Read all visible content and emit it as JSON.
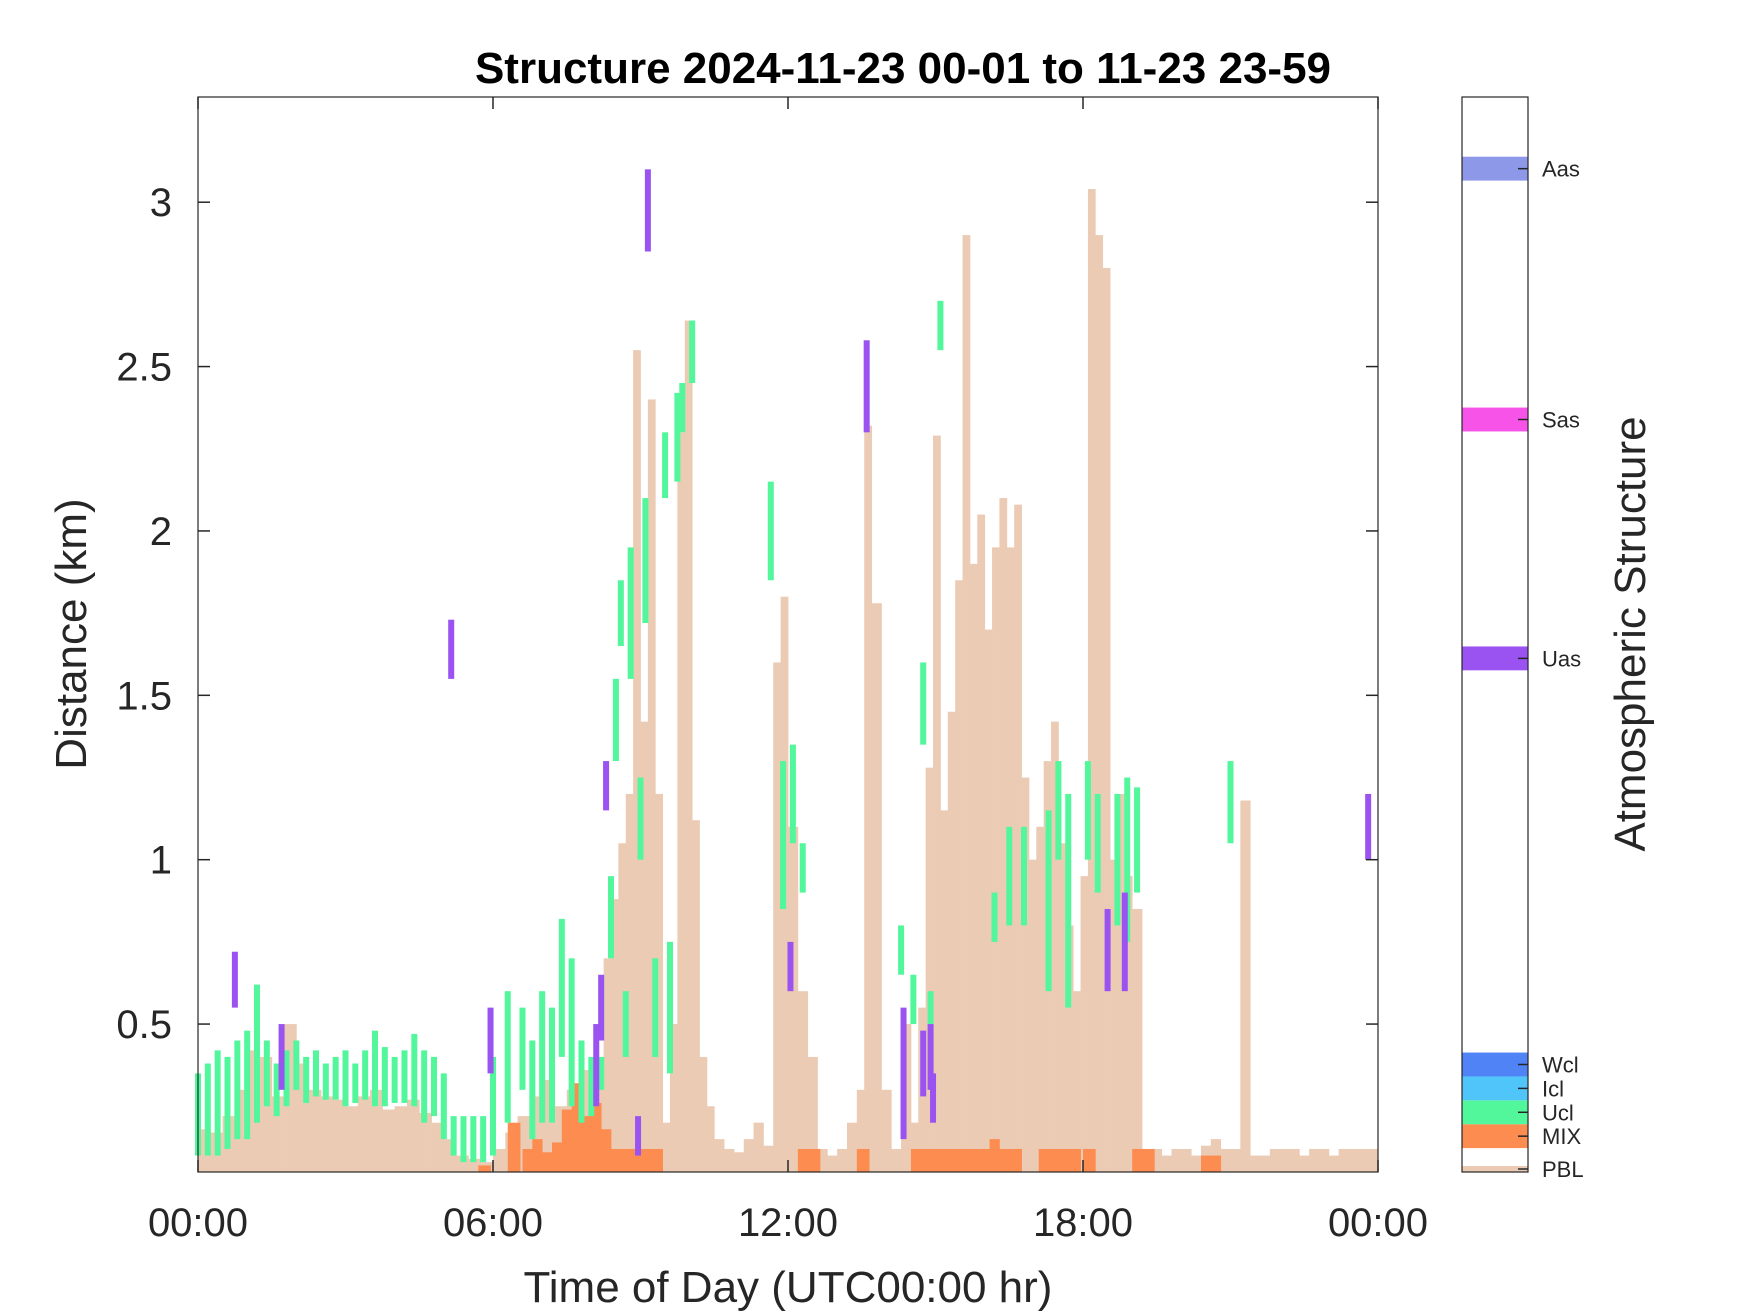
{
  "chart_data": {
    "type": "heatmap",
    "title": "Structure 2024-11-23 00-01 to 11-23 23-59",
    "xlabel": "Time of Day (UTC00:00 hr)",
    "ylabel": "Distance (km)",
    "xlim": [
      0,
      24
    ],
    "ylim": [
      0.05,
      3.32
    ],
    "x_ticks": [
      0,
      6,
      12,
      18,
      24
    ],
    "x_tick_labels": [
      "00:00",
      "06:00",
      "12:00",
      "18:00",
      "00:00"
    ],
    "y_ticks": [
      0.5,
      1,
      1.5,
      2,
      2.5,
      3
    ],
    "y_tick_labels": [
      "0.5",
      "1",
      "1.5",
      "2",
      "2.5",
      "3"
    ],
    "grid": false,
    "colorbar": {
      "label": "Atmospheric Structure",
      "categories": [
        {
          "name": "PBL",
          "color": "#eccbb4"
        },
        {
          "name": "MIX",
          "color": "#fc8c4f"
        },
        {
          "name": "Ucl",
          "color": "#52f79c"
        },
        {
          "name": "Icl",
          "color": "#50c5fa"
        },
        {
          "name": "Wcl",
          "color": "#4f83f6"
        },
        {
          "name": "Uas",
          "color": "#9a53f0"
        },
        {
          "name": "Sas",
          "color": "#f853e8"
        },
        {
          "name": "Aas",
          "color": "#8d98e9"
        }
      ]
    },
    "series": [
      {
        "name": "PBL",
        "type": "bars",
        "x": [
          0,
          0.25,
          0.5,
          0.75,
          1,
          1.25,
          1.5,
          1.75,
          2,
          2.25,
          2.5,
          2.75,
          3,
          3.25,
          3.5,
          3.75,
          4,
          4.25,
          4.5,
          4.75,
          5,
          5.25,
          5.5,
          5.75,
          6,
          6.25,
          6.5,
          6.75,
          7,
          7.25,
          7.5,
          7.75,
          8,
          8.25,
          8.4,
          8.55,
          8.7,
          8.85,
          9,
          9.15,
          9.3,
          9.45,
          9.6,
          9.75,
          9.9,
          10.05,
          10.2,
          10.35,
          10.5,
          10.7,
          10.9,
          11.1,
          11.3,
          11.5,
          11.7,
          11.85,
          12,
          12.2,
          12.4,
          12.6,
          12.8,
          13,
          13.2,
          13.4,
          13.55,
          13.7,
          13.9,
          14.1,
          14.3,
          14.5,
          14.65,
          14.8,
          14.95,
          15.1,
          15.25,
          15.4,
          15.55,
          15.7,
          15.85,
          16,
          16.15,
          16.3,
          16.45,
          16.6,
          16.75,
          16.9,
          17.05,
          17.2,
          17.35,
          17.5,
          17.65,
          17.8,
          17.95,
          18.1,
          18.25,
          18.4,
          18.55,
          18.7,
          18.85,
          19,
          19.2,
          19.4,
          19.6,
          19.8,
          20,
          20.2,
          20.4,
          20.6,
          20.8,
          21,
          21.2,
          21.4,
          21.6,
          21.8,
          22,
          22.2,
          22.4,
          22.6,
          22.8,
          23,
          23.2,
          23.4,
          23.6,
          23.8
        ],
        "top": [
          0.18,
          0.17,
          0.22,
          0.3,
          0.42,
          0.4,
          0.28,
          0.5,
          0.38,
          0.3,
          0.28,
          0.27,
          0.25,
          0.28,
          0.3,
          0.24,
          0.25,
          0.27,
          0.23,
          0.2,
          0.15,
          0.1,
          0.09,
          0.08,
          0.12,
          0.17,
          0.22,
          0.28,
          0.33,
          0.25,
          0.3,
          0.36,
          0.35,
          0.7,
          0.88,
          1.05,
          1.2,
          2.55,
          1.42,
          2.4,
          1.2,
          0.2,
          0.5,
          2.3,
          2.64,
          1.12,
          0.4,
          0.25,
          0.15,
          0.12,
          0.11,
          0.15,
          0.2,
          0.13,
          1.6,
          1.8,
          1.1,
          0.6,
          0.4,
          0.12,
          0.1,
          0.12,
          0.2,
          0.3,
          2.32,
          1.78,
          0.3,
          0.12,
          0.5,
          0.2,
          0.55,
          1.28,
          2.29,
          1.15,
          1.45,
          1.85,
          2.9,
          1.9,
          2.05,
          1.7,
          1.95,
          2.1,
          1.95,
          2.08,
          1.25,
          1.0,
          1.1,
          1.3,
          1.42,
          1.05,
          0.8,
          0.6,
          0.95,
          3.04,
          2.9,
          2.8,
          1.0,
          1.2,
          0.95,
          0.85,
          0.12,
          0.12,
          0.1,
          0.12,
          0.12,
          0.1,
          0.13,
          0.15,
          0.12,
          0.12,
          1.18,
          0.1,
          0.1,
          0.12,
          0.12,
          0.12,
          0.1,
          0.12,
          0.12,
          0.1,
          0.12,
          0.12,
          0.12,
          0.12
        ]
      },
      {
        "name": "MIX",
        "type": "bars",
        "x": [
          5.7,
          6.3,
          6.6,
          6.8,
          7.0,
          7.2,
          7.4,
          7.6,
          7.8,
          8.0,
          8.2,
          8.4,
          8.6,
          8.8,
          9.0,
          9.2,
          12.2,
          12.4,
          13.4,
          14.5,
          14.7,
          14.9,
          15.1,
          15.3,
          15.5,
          15.7,
          15.9,
          16.1,
          16.3,
          16.5,
          17.1,
          17.3,
          17.5,
          17.7,
          18.0,
          19.0,
          19.2,
          20.4,
          20.6
        ],
        "top": [
          0.07,
          0.2,
          0.12,
          0.15,
          0.11,
          0.14,
          0.24,
          0.32,
          0.22,
          0.26,
          0.18,
          0.12,
          0.12,
          0.12,
          0.12,
          0.12,
          0.12,
          0.12,
          0.12,
          0.12,
          0.12,
          0.12,
          0.12,
          0.12,
          0.12,
          0.12,
          0.12,
          0.15,
          0.12,
          0.12,
          0.12,
          0.12,
          0.12,
          0.12,
          0.12,
          0.12,
          0.12,
          0.1,
          0.1
        ]
      },
      {
        "name": "Ucl",
        "type": "segments",
        "segments": [
          [
            0.0,
            0.1,
            0.35
          ],
          [
            0.2,
            0.1,
            0.38
          ],
          [
            0.4,
            0.1,
            0.42
          ],
          [
            0.6,
            0.12,
            0.4
          ],
          [
            0.8,
            0.15,
            0.45
          ],
          [
            1.0,
            0.15,
            0.48
          ],
          [
            1.2,
            0.2,
            0.62
          ],
          [
            1.4,
            0.25,
            0.45
          ],
          [
            1.6,
            0.22,
            0.38
          ],
          [
            1.8,
            0.25,
            0.42
          ],
          [
            2.0,
            0.3,
            0.45
          ],
          [
            2.2,
            0.26,
            0.4
          ],
          [
            2.4,
            0.28,
            0.42
          ],
          [
            2.6,
            0.27,
            0.38
          ],
          [
            2.8,
            0.27,
            0.4
          ],
          [
            3.0,
            0.25,
            0.42
          ],
          [
            3.2,
            0.26,
            0.38
          ],
          [
            3.4,
            0.27,
            0.42
          ],
          [
            3.6,
            0.25,
            0.48
          ],
          [
            3.8,
            0.25,
            0.43
          ],
          [
            4.0,
            0.26,
            0.4
          ],
          [
            4.2,
            0.26,
            0.42
          ],
          [
            4.4,
            0.25,
            0.47
          ],
          [
            4.6,
            0.2,
            0.42
          ],
          [
            4.8,
            0.22,
            0.4
          ],
          [
            5.0,
            0.15,
            0.35
          ],
          [
            5.2,
            0.1,
            0.22
          ],
          [
            5.4,
            0.08,
            0.22
          ],
          [
            5.6,
            0.08,
            0.22
          ],
          [
            5.8,
            0.08,
            0.22
          ],
          [
            6.0,
            0.1,
            0.4
          ],
          [
            6.3,
            0.2,
            0.6
          ],
          [
            6.6,
            0.3,
            0.55
          ],
          [
            6.8,
            0.15,
            0.45
          ],
          [
            7.0,
            0.2,
            0.6
          ],
          [
            7.2,
            0.2,
            0.55
          ],
          [
            7.4,
            0.4,
            0.82
          ],
          [
            7.6,
            0.25,
            0.7
          ],
          [
            7.8,
            0.2,
            0.45
          ],
          [
            8.0,
            0.22,
            0.4
          ],
          [
            8.2,
            0.3,
            0.4
          ],
          [
            8.4,
            0.7,
            0.95
          ],
          [
            8.5,
            1.3,
            1.55
          ],
          [
            8.6,
            1.65,
            1.85
          ],
          [
            8.7,
            0.4,
            0.6
          ],
          [
            8.8,
            1.55,
            1.95
          ],
          [
            9.0,
            1.0,
            1.25
          ],
          [
            9.1,
            1.72,
            2.1
          ],
          [
            9.3,
            0.4,
            0.7
          ],
          [
            9.5,
            2.1,
            2.3
          ],
          [
            9.6,
            0.35,
            0.75
          ],
          [
            9.75,
            2.15,
            2.42
          ],
          [
            9.85,
            2.3,
            2.45
          ],
          [
            10.05,
            2.45,
            2.64
          ],
          [
            11.65,
            1.85,
            2.15
          ],
          [
            11.9,
            0.85,
            1.3
          ],
          [
            12.1,
            1.05,
            1.35
          ],
          [
            12.3,
            0.9,
            1.05
          ],
          [
            14.3,
            0.65,
            0.8
          ],
          [
            14.55,
            0.5,
            0.65
          ],
          [
            14.75,
            1.35,
            1.6
          ],
          [
            14.9,
            0.5,
            0.6
          ],
          [
            15.1,
            2.55,
            2.7
          ],
          [
            16.2,
            0.75,
            0.9
          ],
          [
            16.5,
            0.8,
            1.1
          ],
          [
            16.8,
            0.8,
            1.1
          ],
          [
            17.3,
            0.6,
            1.15
          ],
          [
            17.5,
            1.0,
            1.3
          ],
          [
            17.7,
            0.55,
            1.2
          ],
          [
            18.1,
            1.0,
            1.3
          ],
          [
            18.3,
            0.9,
            1.2
          ],
          [
            18.7,
            0.8,
            1.2
          ],
          [
            18.9,
            0.75,
            1.25
          ],
          [
            19.1,
            0.9,
            1.22
          ],
          [
            21.0,
            1.05,
            1.3
          ]
        ]
      },
      {
        "name": "Uas",
        "type": "segments",
        "segments": [
          [
            0.75,
            0.55,
            0.72
          ],
          [
            1.7,
            0.3,
            0.5
          ],
          [
            5.15,
            1.55,
            1.73
          ],
          [
            5.95,
            0.35,
            0.55
          ],
          [
            8.1,
            0.25,
            0.5
          ],
          [
            8.2,
            0.45,
            0.65
          ],
          [
            8.3,
            1.15,
            1.3
          ],
          [
            8.95,
            0.1,
            0.22
          ],
          [
            9.15,
            2.85,
            3.1
          ],
          [
            12.05,
            0.6,
            0.75
          ],
          [
            13.6,
            2.3,
            2.58
          ],
          [
            14.35,
            0.15,
            0.55
          ],
          [
            14.75,
            0.28,
            0.48
          ],
          [
            14.9,
            0.3,
            0.5
          ],
          [
            14.95,
            0.2,
            0.35
          ],
          [
            18.5,
            0.6,
            0.85
          ],
          [
            18.85,
            0.6,
            0.9
          ],
          [
            23.8,
            1.0,
            1.2
          ]
        ]
      }
    ]
  }
}
